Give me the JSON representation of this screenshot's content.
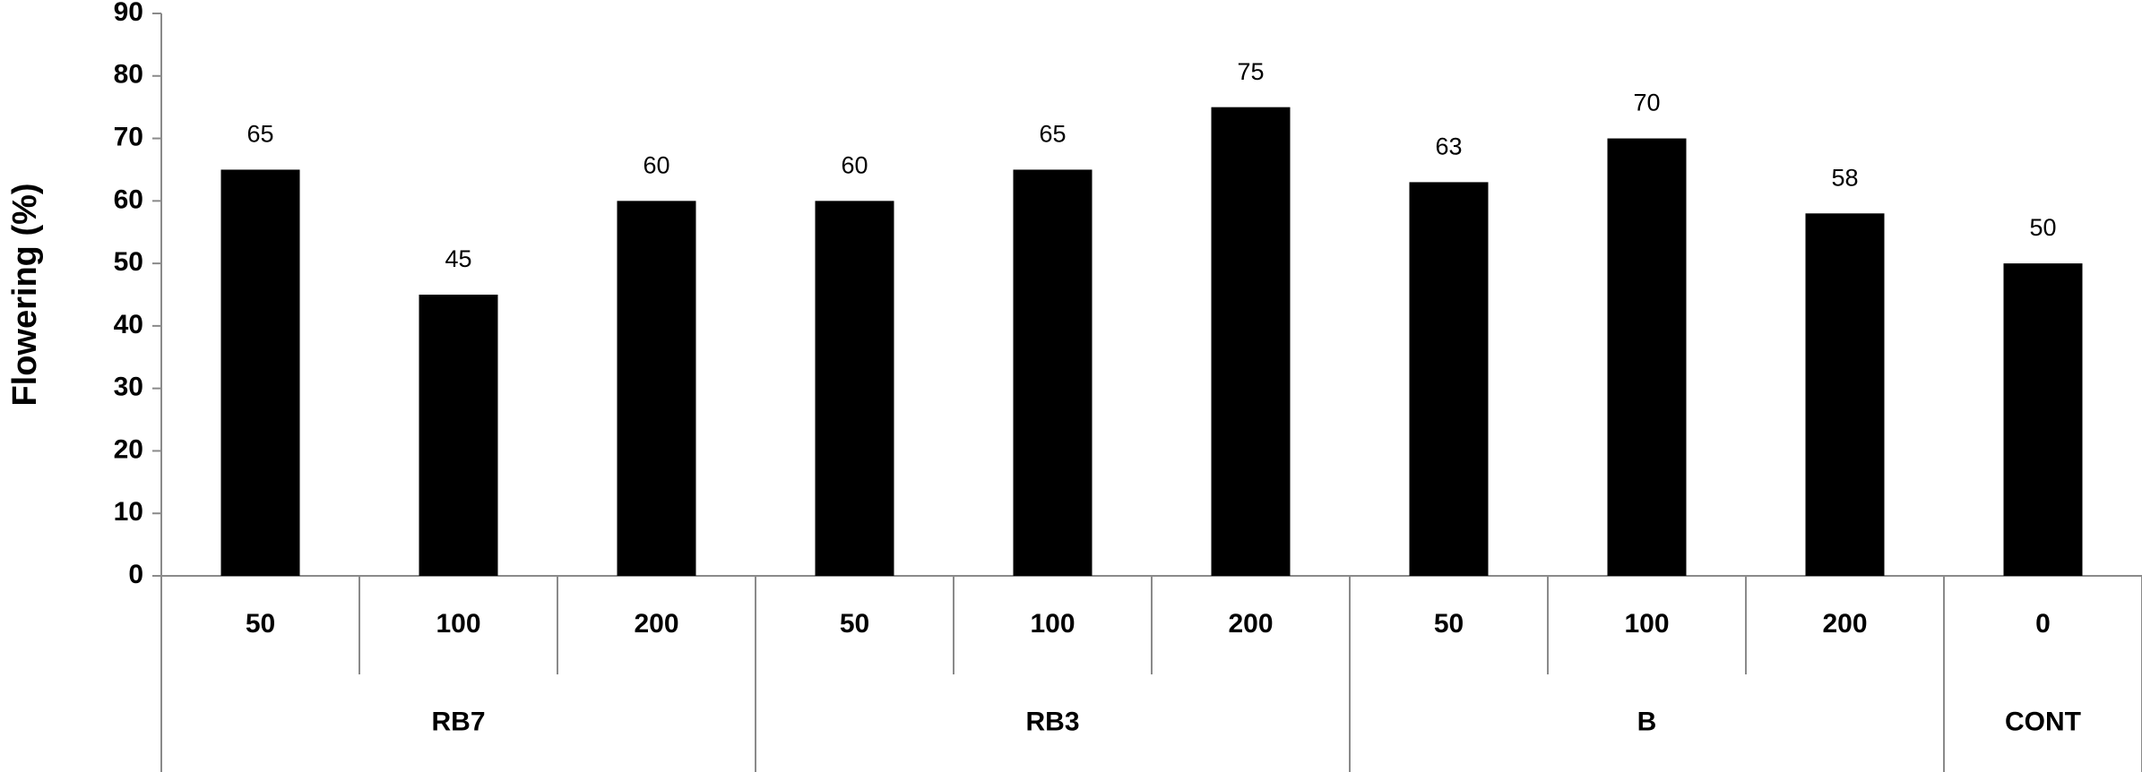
{
  "chart_data": {
    "type": "bar",
    "y_label": "Flowering (%)",
    "color": "#000000",
    "groups": [
      {
        "name": "RB7",
        "categories": [
          "50",
          "100",
          "200"
        ],
        "values": [
          65,
          45,
          60
        ]
      },
      {
        "name": "RB3",
        "categories": [
          "50",
          "100",
          "200"
        ],
        "values": [
          60,
          65,
          75
        ]
      },
      {
        "name": "B",
        "categories": [
          "50",
          "100",
          "200"
        ],
        "values": [
          63,
          70,
          58
        ]
      },
      {
        "name": "CONT",
        "categories": [
          "0"
        ],
        "values": [
          50
        ]
      }
    ],
    "ylim": [
      0,
      90
    ],
    "yticks": [
      0,
      10,
      20,
      30,
      40,
      50,
      60,
      70,
      80,
      90
    ]
  }
}
